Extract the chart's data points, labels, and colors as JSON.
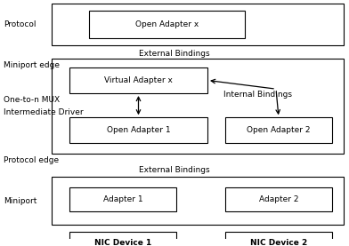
{
  "bg_color": "#ffffff",
  "fig_width": 3.92,
  "fig_height": 2.77,
  "dpi": 100,
  "labels": {
    "protocol": "Protocol",
    "miniport_edge": "Miniport edge",
    "mux1": "One-to-n MUX",
    "mux2": "Intermediate Driver",
    "protocol_edge": "Protocol edge",
    "miniport": "Miniport",
    "ext_bindings_top": "External Bindings",
    "ext_bindings_bot": "External Bindings",
    "internal_bindings": "Internal Bindings"
  },
  "boxes": {
    "open_adapter_x": {
      "label": "Open Adapter x",
      "bold": false
    },
    "virtual_adapter": {
      "label": "Virtual Adapter x",
      "bold": false
    },
    "open_adapter_1": {
      "label": "Open Adapter 1",
      "bold": false
    },
    "open_adapter_2": {
      "label": "Open Adapter 2",
      "bold": false
    },
    "adapter_1": {
      "label": "Adapter 1",
      "bold": false
    },
    "adapter_2": {
      "label": "Adapter 2",
      "bold": false
    },
    "nic_1": {
      "label": "NIC Device 1",
      "bold": true
    },
    "nic_2": {
      "label": "NIC Device 2",
      "bold": true
    }
  },
  "font_size": 6.5
}
